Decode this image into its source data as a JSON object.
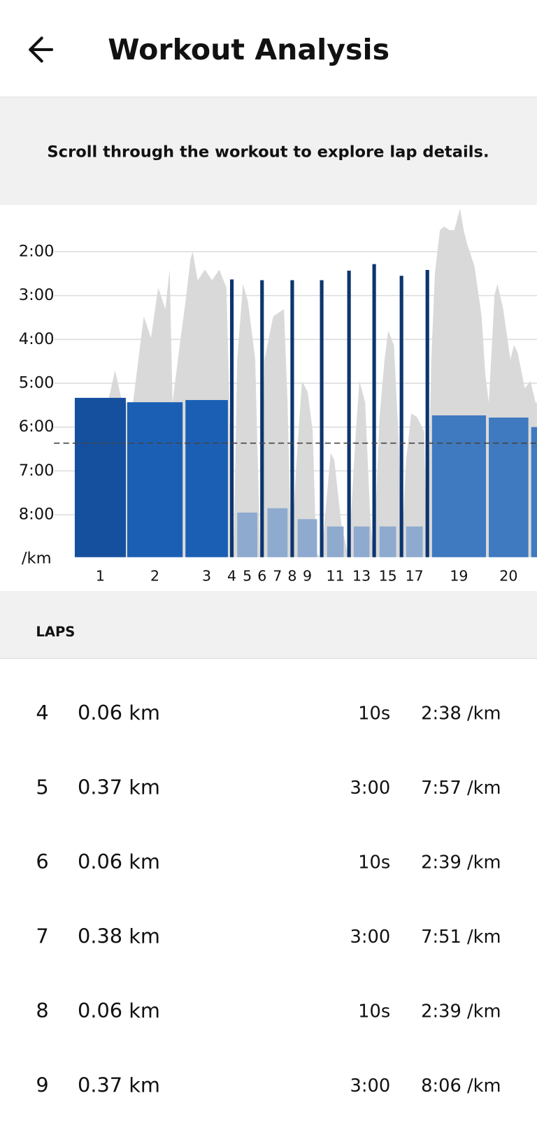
{
  "header": {
    "title": "Workout Analysis"
  },
  "banner": {
    "text": "Scroll through the workout to explore lap details."
  },
  "chart_data": {
    "type": "bar",
    "y_unit": "/km",
    "categories": [
      1,
      2,
      3,
      4,
      5,
      6,
      7,
      8,
      9,
      null,
      11,
      null,
      13,
      null,
      15,
      null,
      17,
      null,
      19,
      20,
      null
    ],
    "values": [
      320,
      326,
      323,
      158,
      477,
      159,
      471,
      159,
      486,
      159,
      496,
      146,
      496,
      137,
      496,
      153,
      496,
      145,
      344,
      347,
      360
    ],
    "colors": [
      "#15509f",
      "#1b5fb5",
      "#1b5fb5",
      "#0d356f",
      "#8eaacf",
      "#0d356f",
      "#8eaacf",
      "#0d356f",
      "#8eaacf",
      "#0d356f",
      "#8eaacf",
      "#0d356f",
      "#8eaacf",
      "#0d356f",
      "#8eaacf",
      "#0d356f",
      "#8eaacf",
      "#0d356f",
      "#3f79bf",
      "#3f79bf",
      "#3f79bf"
    ],
    "ylim": [
      538,
      56
    ],
    "yticks": [
      {
        "value": 120,
        "label": "2:00"
      },
      {
        "value": 180,
        "label": "3:00"
      },
      {
        "value": 240,
        "label": "4:00"
      },
      {
        "value": 300,
        "label": "5:00"
      },
      {
        "value": 360,
        "label": "6:00"
      },
      {
        "value": 420,
        "label": "7:00"
      },
      {
        "value": 480,
        "label": "8:00"
      }
    ],
    "grid": true,
    "average": 382
  },
  "laps": {
    "title": "LAPS",
    "rows": [
      {
        "lap": 4,
        "distance": "0.06 km",
        "time": "10s",
        "pace": "2:38 /km"
      },
      {
        "lap": 5,
        "distance": "0.37 km",
        "time": "3:00",
        "pace": "7:57 /km"
      },
      {
        "lap": 6,
        "distance": "0.06 km",
        "time": "10s",
        "pace": "2:39 /km"
      },
      {
        "lap": 7,
        "distance": "0.38 km",
        "time": "3:00",
        "pace": "7:51 /km"
      },
      {
        "lap": 8,
        "distance": "0.06 km",
        "time": "10s",
        "pace": "2:39 /km"
      },
      {
        "lap": 9,
        "distance": "0.37 km",
        "time": "3:00",
        "pace": "8:06 /km"
      }
    ]
  }
}
